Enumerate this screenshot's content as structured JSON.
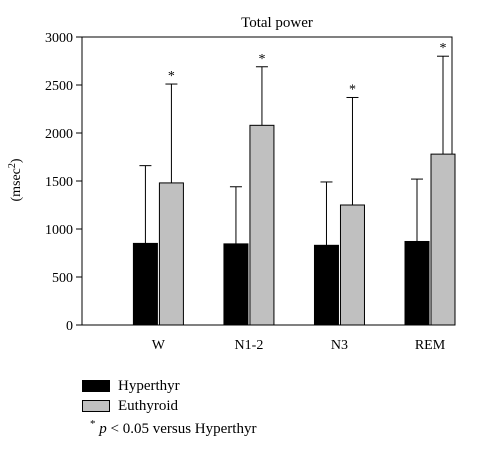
{
  "chart_data": {
    "type": "bar",
    "title": "Total power",
    "ylabel": "(msec",
    "ylabel_sup": "2",
    "ylabel_close": ")",
    "xlabel": "",
    "categories": [
      "W",
      "N1-2",
      "N3",
      "REM"
    ],
    "ylim": [
      0,
      3000
    ],
    "yticks": [
      0,
      500,
      1000,
      1500,
      2000,
      2500,
      3000
    ],
    "grid": false,
    "legend_position": "bottom-left",
    "series": [
      {
        "name": "Hyperthyr",
        "color": "#000000",
        "values": [
          850,
          845,
          830,
          870
        ],
        "error_upper": [
          1660,
          1440,
          1490,
          1520
        ],
        "significance": [
          "",
          "",
          "",
          ""
        ]
      },
      {
        "name": "Euthyroid",
        "color": "#c0c0c0",
        "values": [
          1480,
          2080,
          1250,
          1780
        ],
        "error_upper": [
          2510,
          2690,
          2370,
          2800
        ],
        "significance": [
          "*",
          "*",
          "*",
          "*"
        ]
      }
    ],
    "note": {
      "marker": "*",
      "italic": "p",
      "text": " < 0.05 versus Hyperthyr"
    }
  }
}
